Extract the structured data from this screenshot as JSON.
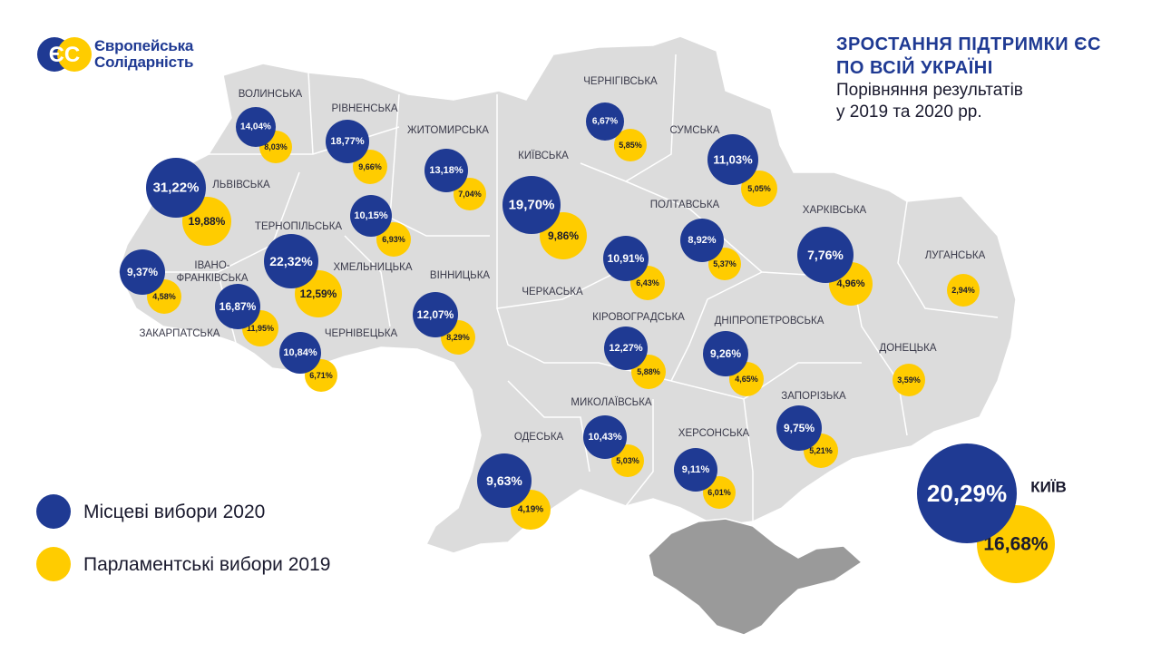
{
  "logo": {
    "mark": "ЄС",
    "line1": "Європейська",
    "line2": "Солідарність"
  },
  "title": {
    "line1": "ЗРОСТАННЯ ПІДТРИМКИ ЄС",
    "line2": "ПО ВСІЙ УКРАЇНІ",
    "subtitle1": "Порівняння результатів",
    "subtitle2": "у 2019 та 2020 рр."
  },
  "legend": {
    "local_2020": "Місцеві вибори 2020",
    "parliament_2019": "Парламентські вибори 2019"
  },
  "colors": {
    "local_2020": "#1f3a93",
    "parliament_2019": "#ffcc00",
    "map_fill": "#dcdcdc",
    "crimea_fill": "#9a9a9a",
    "region_label": "#3a3a4a",
    "title": "#1f3a93"
  },
  "regions": [
    {
      "name": "ВОЛИНСЬКА",
      "local_2020": "14,04%",
      "parliament_2019": "8,03%"
    },
    {
      "name": "РІВНЕНСЬКА",
      "local_2020": "18,77%",
      "parliament_2019": "9,66%"
    },
    {
      "name": "ЖИТОМИРСЬКА",
      "local_2020": "13,18%",
      "parliament_2019": "7,04%"
    },
    {
      "name": "КИЇВСЬКА",
      "local_2020": "19,70%",
      "parliament_2019": "9,86%"
    },
    {
      "name": "ЧЕРНІГІВСЬКА",
      "local_2020": "6,67%",
      "parliament_2019": "5,85%"
    },
    {
      "name": "СУМСЬКА",
      "local_2020": "11,03%",
      "parliament_2019": "5,05%"
    },
    {
      "name": "ЛЬВІВСЬКА",
      "local_2020": "31,22%",
      "parliament_2019": "19,88%"
    },
    {
      "name": "ТЕРНОПІЛЬСЬКА",
      "local_2020": "22,32%",
      "parliament_2019": "12,59%"
    },
    {
      "name": "ХМЕЛЬНИЦЬКА",
      "local_2020": "10,15%",
      "parliament_2019": "6,93%"
    },
    {
      "name": "ІВАНО-ФРАНКІВСЬКА",
      "local_2020": "16,87%",
      "parliament_2019": "11,95%"
    },
    {
      "name": "ЗАКАРПАТСЬКА",
      "local_2020": "9,37%",
      "parliament_2019": "4,58%"
    },
    {
      "name": "ЧЕРНІВЕЦЬКА",
      "local_2020": "10,84%",
      "parliament_2019": "6,71%"
    },
    {
      "name": "ВІННИЦЬКА",
      "local_2020": "12,07%",
      "parliament_2019": "8,29%"
    },
    {
      "name": "ЧЕРКАСЬКА",
      "local_2020": "10,91%",
      "parliament_2019": "6,43%"
    },
    {
      "name": "ПОЛТАВСЬКА",
      "local_2020": "8,92%",
      "parliament_2019": "5,37%"
    },
    {
      "name": "ХАРКІВСЬКА",
      "local_2020": "7,76%",
      "parliament_2019": "4,96%"
    },
    {
      "name": "ЛУГАНСЬКА",
      "local_2020": "",
      "parliament_2019": "2,94%"
    },
    {
      "name": "КІРОВОГРАДСЬКА",
      "local_2020": "12,27%",
      "parliament_2019": "5,88%"
    },
    {
      "name": "ДНІПРОПЕТРОВСЬКА",
      "local_2020": "9,26%",
      "parliament_2019": "4,65%"
    },
    {
      "name": "ДОНЕЦЬКА",
      "local_2020": "",
      "parliament_2019": "3,59%"
    },
    {
      "name": "МИКОЛАЇВСЬКА",
      "local_2020": "10,43%",
      "parliament_2019": "5,03%"
    },
    {
      "name": "ОДЕСЬКА",
      "local_2020": "9,63%",
      "parliament_2019": "4,19%"
    },
    {
      "name": "ХЕРСОНСЬКА",
      "local_2020": "9,11%",
      "parliament_2019": "6,01%"
    },
    {
      "name": "ЗАПОРІЗЬКА",
      "local_2020": "9,75%",
      "parliament_2019": "5,21%"
    },
    {
      "name": "КИЇВ",
      "local_2020": "20,29%",
      "parliament_2019": "16,68%"
    }
  ]
}
